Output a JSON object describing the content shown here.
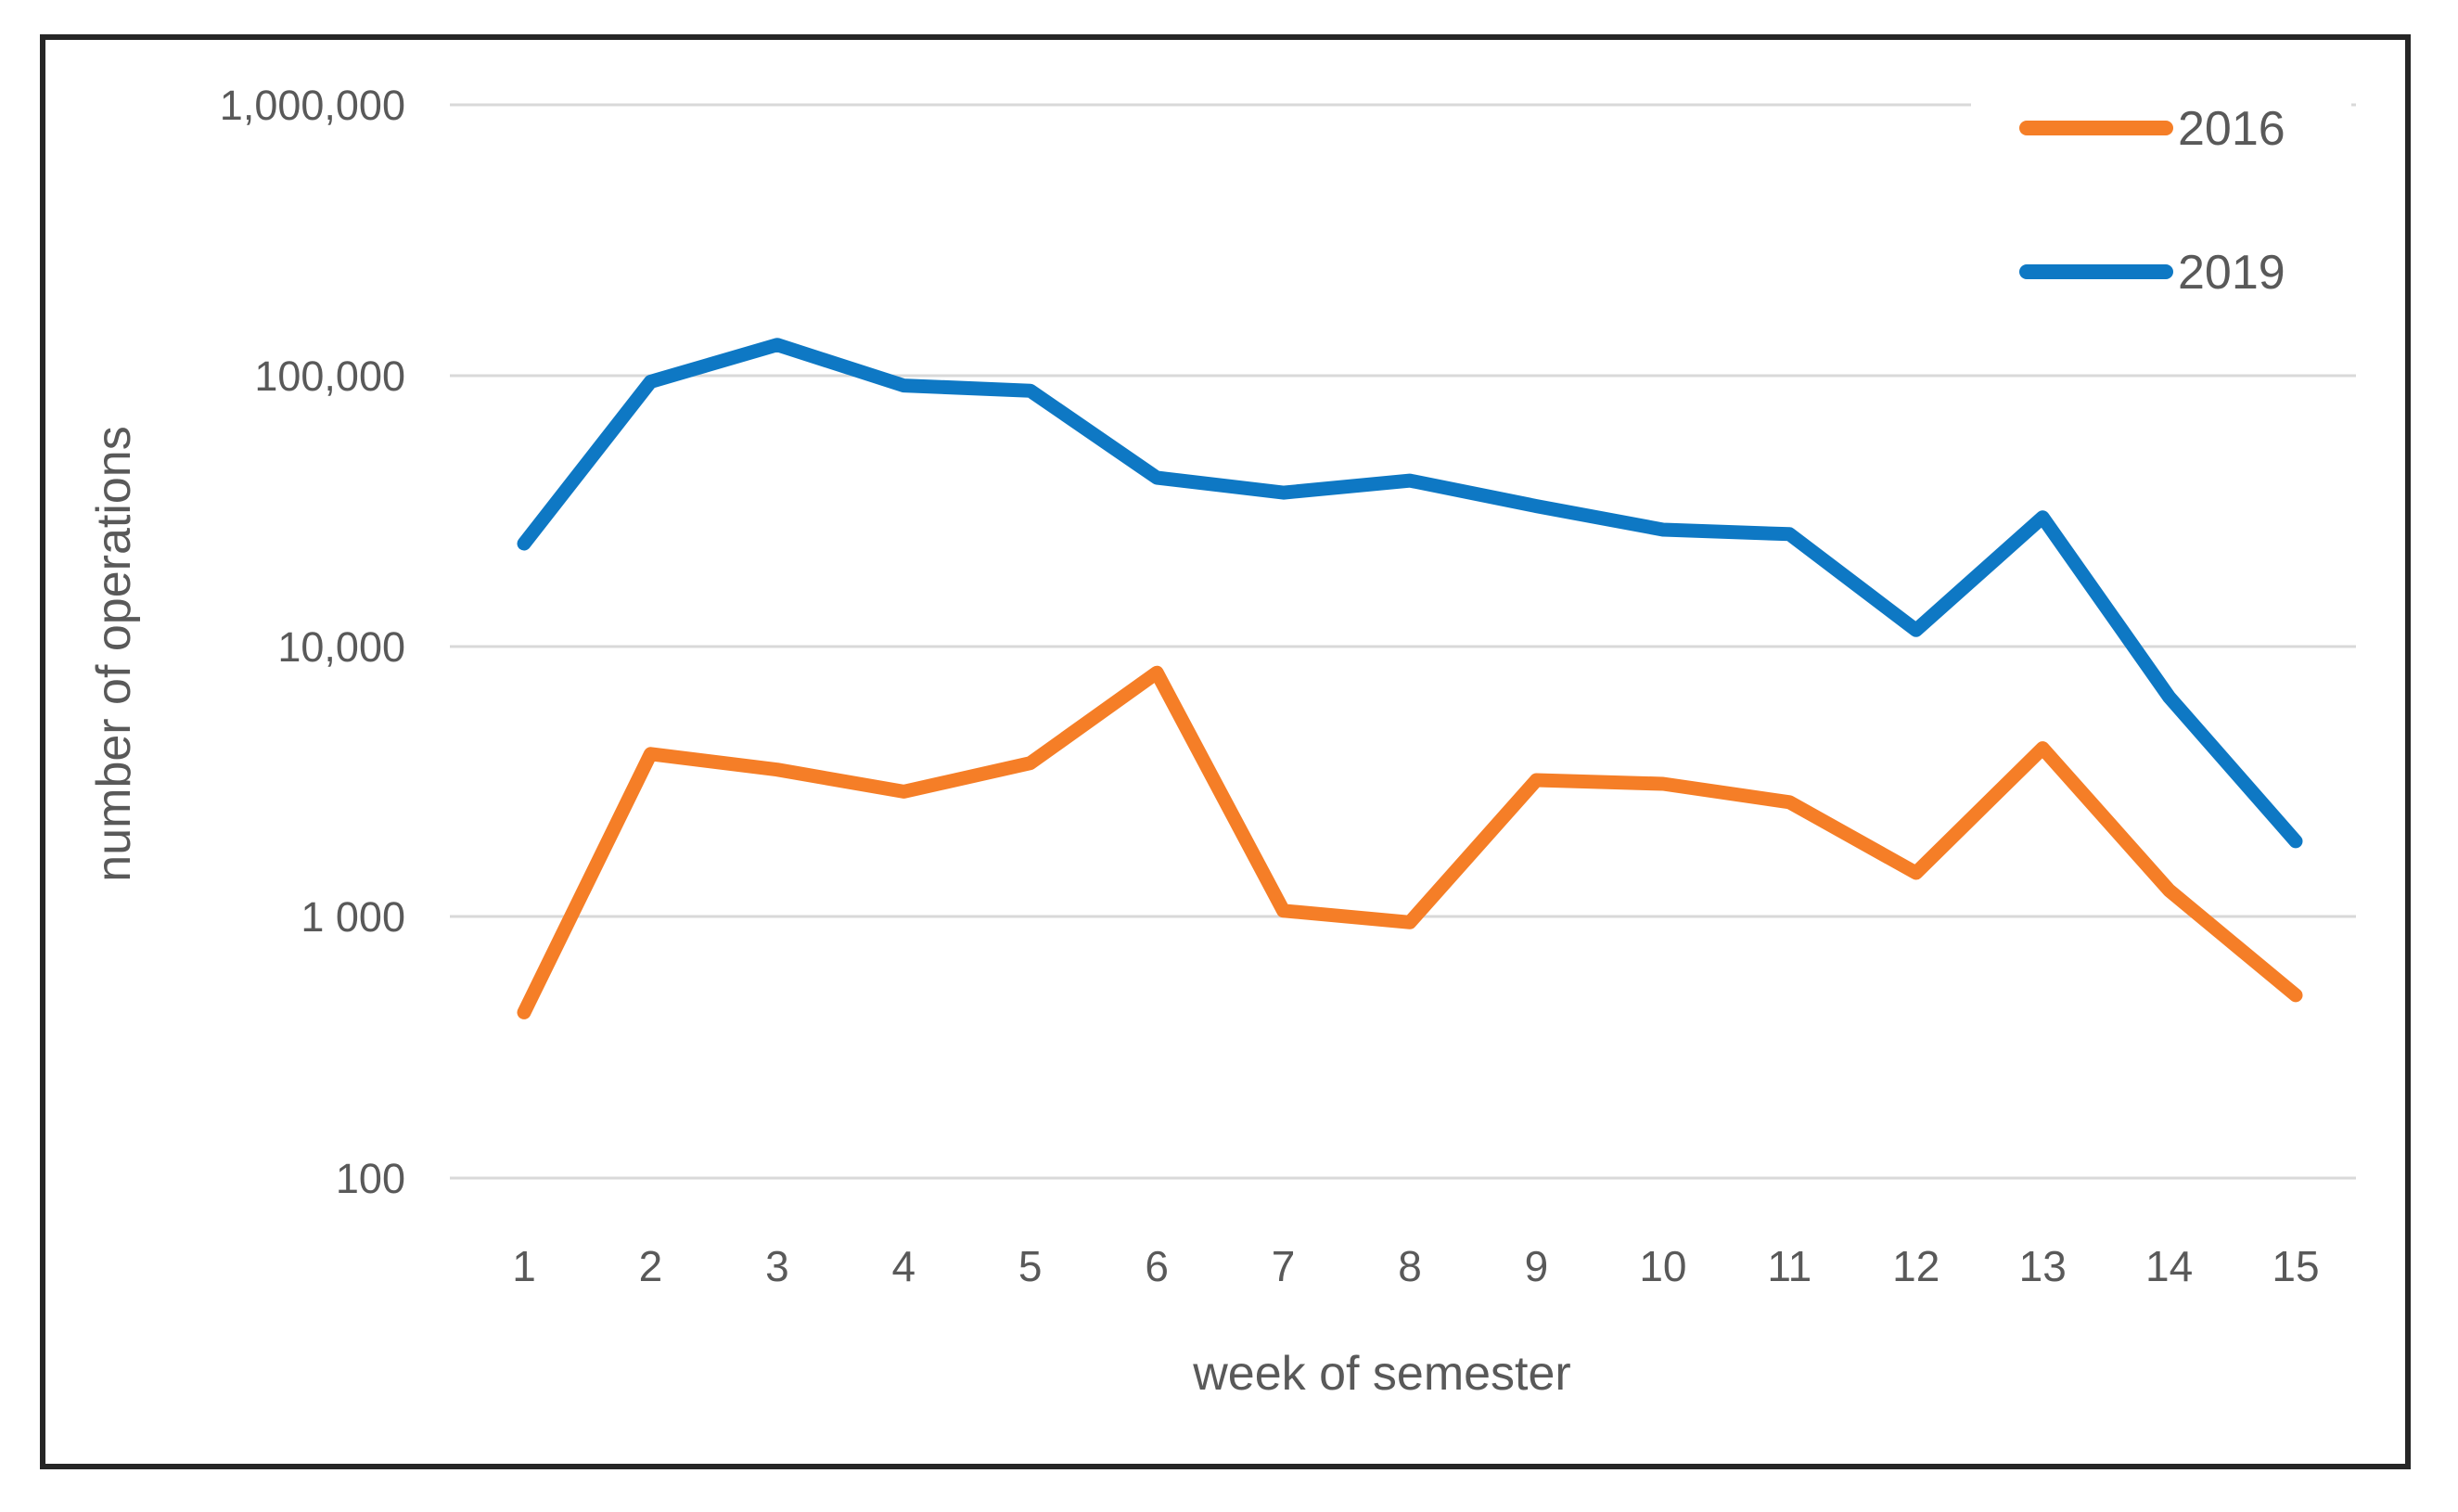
{
  "chart_data": {
    "type": "line",
    "xlabel": "week of semester",
    "ylabel": "number of operations",
    "x_axis": {
      "categories": [
        "1",
        "2",
        "3",
        "4",
        "5",
        "6",
        "7",
        "8",
        "9",
        "10",
        "11",
        "12",
        "13",
        "14",
        "15"
      ]
    },
    "y_axis": {
      "scale": "log",
      "ylim": [
        100,
        1000000
      ],
      "ticks": [
        {
          "label": "1,000,000",
          "value": 1000000
        },
        {
          "label": "100,000",
          "value": 100000
        },
        {
          "label": "10,000",
          "value": 10000
        },
        {
          "label": "1 000",
          "value": 1000
        },
        {
          "label": "100",
          "value": 100
        }
      ]
    },
    "series": [
      {
        "name": "2016",
        "color": "#F57E27",
        "values": [
          430,
          4000,
          3500,
          2900,
          3700,
          8000,
          1050,
          950,
          3200,
          3100,
          2650,
          1450,
          4200,
          1250,
          500
        ]
      },
      {
        "name": "2019",
        "color": "#0E78C4",
        "values": [
          24000,
          95000,
          130000,
          92000,
          88000,
          42000,
          37000,
          41000,
          33000,
          27000,
          26000,
          11500,
          30000,
          6500,
          1900
        ]
      }
    ],
    "legend_position": "top-right",
    "grid": "horizontal"
  },
  "colors": {
    "text": "#595959",
    "gridline": "#D9D9D9",
    "frame": "#262626",
    "background": "#FFFFFF"
  }
}
